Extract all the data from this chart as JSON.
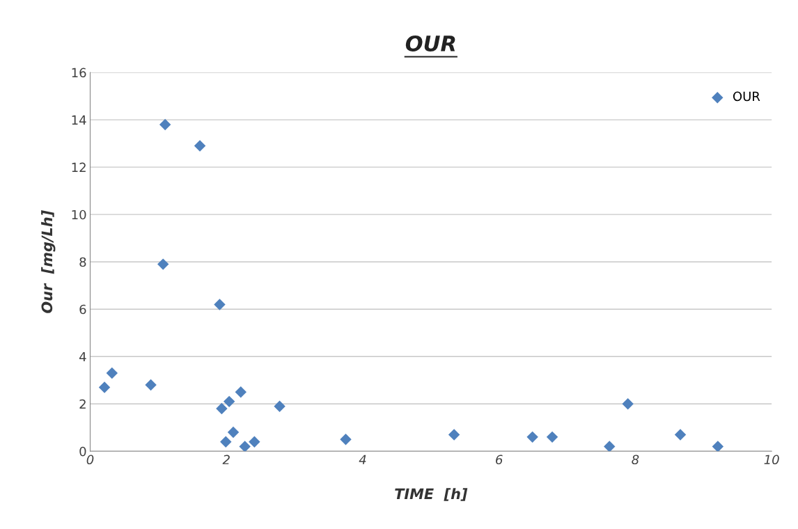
{
  "chart_data": {
    "type": "scatter",
    "title": "OUR",
    "xlabel": "TIME  [h]",
    "ylabel": "Our  [mg/Lh]",
    "x": [
      0.21,
      0.32,
      0.89,
      1.07,
      1.1,
      1.61,
      1.9,
      1.93,
      1.99,
      2.04,
      2.1,
      2.21,
      2.27,
      2.41,
      2.78,
      3.75,
      5.34,
      6.49,
      6.78,
      7.62,
      7.89,
      8.66,
      9.21
    ],
    "series": [
      {
        "name": "OUR",
        "color": "#4f81bd",
        "values": [
          2.7,
          3.3,
          2.8,
          7.9,
          13.8,
          12.9,
          6.2,
          1.8,
          0.4,
          2.1,
          0.8,
          2.5,
          0.2,
          0.4,
          1.9,
          0.5,
          0.7,
          0.6,
          0.6,
          0.2,
          2.0,
          0.7,
          0.2
        ]
      }
    ],
    "xlim": [
      0,
      10
    ],
    "xticks": [
      0,
      2,
      4,
      6,
      8,
      10
    ],
    "ylim": [
      0,
      16
    ],
    "yticks": [
      0,
      2,
      4,
      6,
      8,
      10,
      12,
      14,
      16
    ],
    "grid": "y",
    "legend": "top right",
    "marker": "diamond"
  }
}
